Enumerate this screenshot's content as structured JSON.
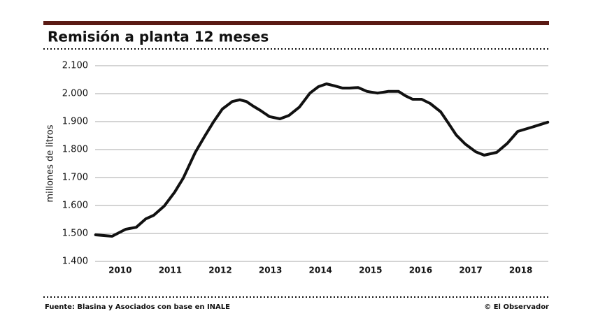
{
  "chart_data": {
    "type": "line",
    "title": "Remisión a planta 12 meses",
    "y_label": "millones de litros",
    "source": "Fuente: Blasina y Asociados con base en INALE",
    "credit": "© El Observador",
    "x": [
      2010.01,
      2010.34,
      2010.61,
      2010.82,
      2011.01,
      2011.17,
      2011.38,
      2011.59,
      2011.76,
      2012.0,
      2012.19,
      2012.36,
      2012.54,
      2012.74,
      2012.89,
      2013.02,
      2013.16,
      2013.3,
      2013.48,
      2013.69,
      2013.87,
      2014.08,
      2014.29,
      2014.46,
      2014.62,
      2014.78,
      2014.94,
      2015.08,
      2015.25,
      2015.43,
      2015.64,
      2015.85,
      2016.06,
      2016.2,
      2016.34,
      2016.52,
      2016.69,
      2016.9,
      2017.04,
      2017.21,
      2017.39,
      2017.6,
      2017.77,
      2018.02,
      2018.23,
      2018.44,
      2018.72,
      2019.04
    ],
    "series": [
      {
        "name": "Remisión",
        "color": "#111111",
        "values": [
          1495,
          1490,
          1515,
          1522,
          1552,
          1565,
          1598,
          1648,
          1698,
          1790,
          1848,
          1898,
          1945,
          1972,
          1978,
          1972,
          1955,
          1940,
          1918,
          1910,
          1922,
          1952,
          2002,
          2025,
          2035,
          2028,
          2020,
          2020,
          2022,
          2008,
          2002,
          2008,
          2008,
          1992,
          1980,
          1980,
          1965,
          1935,
          1898,
          1852,
          1820,
          1792,
          1780,
          1790,
          1822,
          1865,
          1880,
          1898
        ]
      }
    ],
    "xlim": [
      2010,
      2019.05
    ],
    "xticks": [
      {
        "value": 2010.5,
        "label": "2010"
      },
      {
        "value": 2011.5,
        "label": "2011"
      },
      {
        "value": 2012.5,
        "label": "2012"
      },
      {
        "value": 2013.5,
        "label": "2013"
      },
      {
        "value": 2014.5,
        "label": "2014"
      },
      {
        "value": 2015.5,
        "label": "2015"
      },
      {
        "value": 2016.5,
        "label": "2016"
      },
      {
        "value": 2017.5,
        "label": "2017"
      },
      {
        "value": 2018.5,
        "label": "2018"
      }
    ],
    "ylim": [
      1400,
      2100
    ],
    "yticks": [
      {
        "value": 1400,
        "label": "1.400"
      },
      {
        "value": 1500,
        "label": "1.500"
      },
      {
        "value": 1600,
        "label": "1.600"
      },
      {
        "value": 1700,
        "label": "1.700"
      },
      {
        "value": 1800,
        "label": "1.800"
      },
      {
        "value": 1900,
        "label": "1.900"
      },
      {
        "value": 2000,
        "label": "2.000"
      },
      {
        "value": 2100,
        "label": "2.100"
      }
    ],
    "grid": true
  }
}
